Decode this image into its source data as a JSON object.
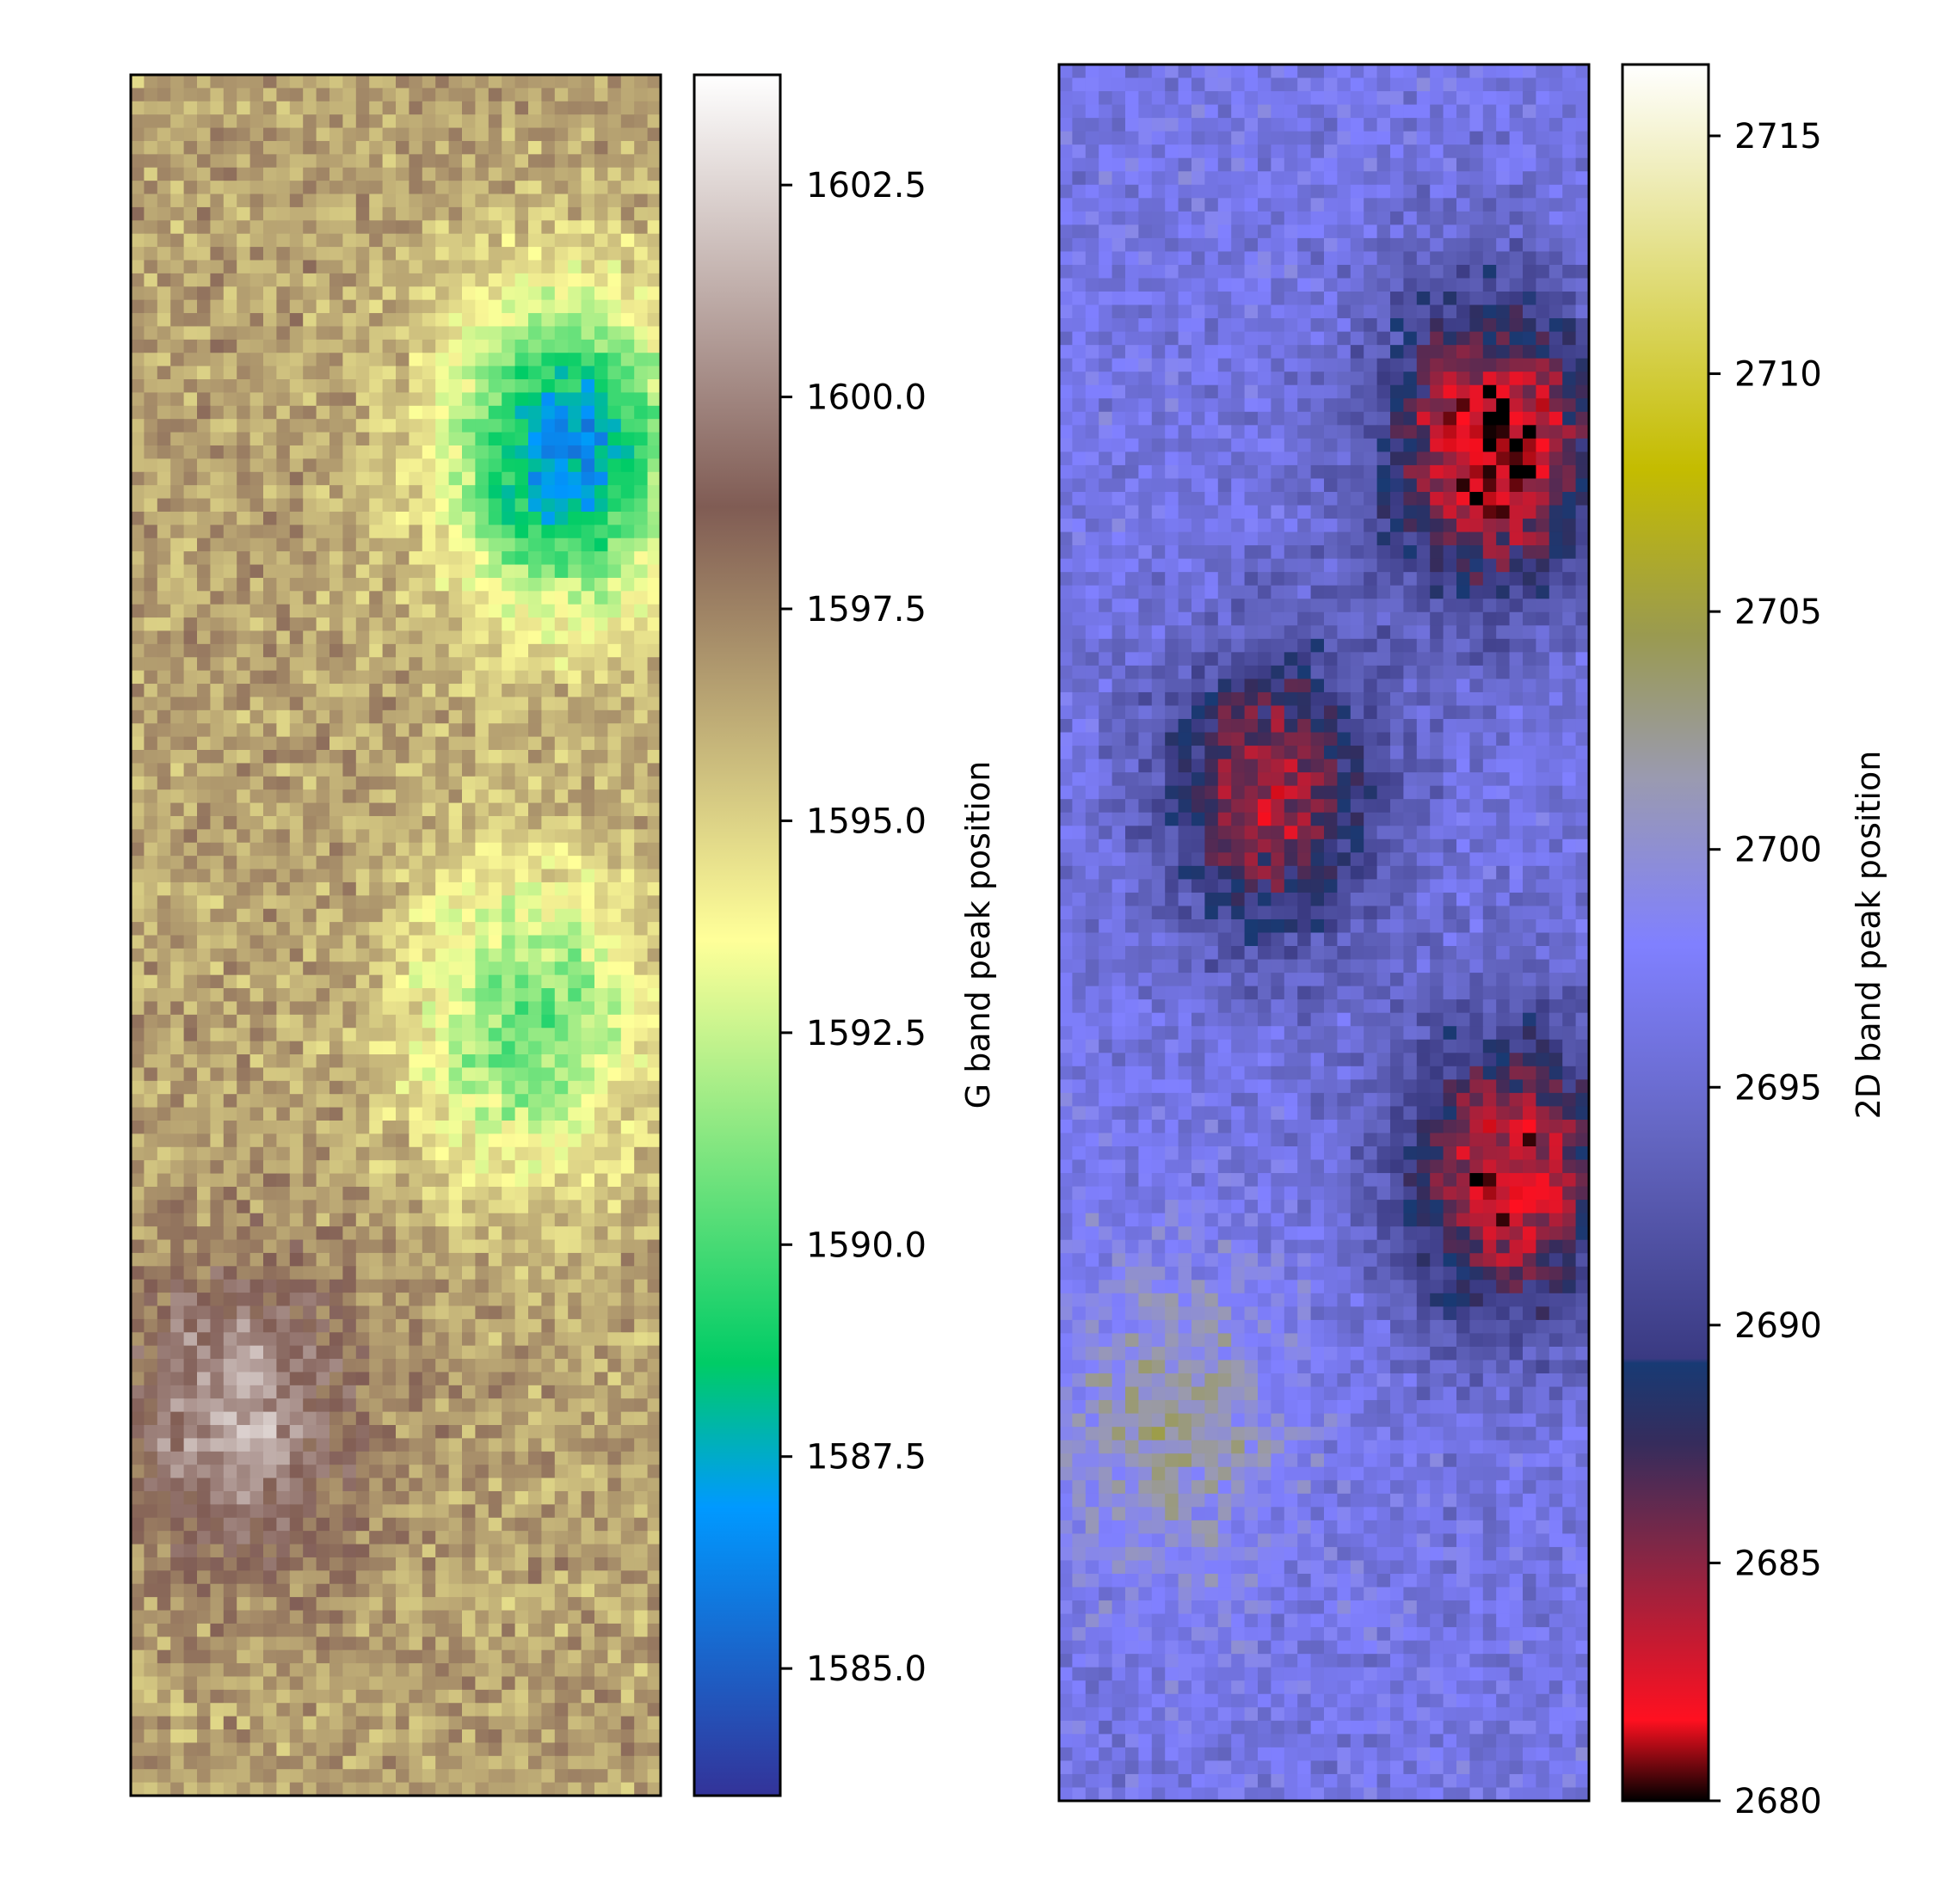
{
  "chart_data": [
    {
      "type": "heatmap",
      "title": "",
      "xlabel": "",
      "ylabel": "",
      "colorbar_label": "G band peak position",
      "colormap": "terrain",
      "colorbar_range": [
        1583.5,
        1603.8
      ],
      "colorbar_ticks": [
        1585.0,
        1587.5,
        1590.0,
        1592.5,
        1595.0,
        1597.5,
        1600.0,
        1602.5
      ],
      "colorbar_tick_labels": [
        "1585.0",
        "1587.5",
        "1590.0",
        "1592.5",
        "1595.0",
        "1597.5",
        "1600.0",
        "1602.5"
      ],
      "colorbar_stops": [
        {
          "value": 1583.5,
          "color": "#333399"
        },
        {
          "value": 1586.9,
          "color": "#0099ff"
        },
        {
          "value": 1588.6,
          "color": "#00cc66"
        },
        {
          "value": 1593.6,
          "color": "#ffff99"
        },
        {
          "value": 1598.7,
          "color": "#805c54"
        },
        {
          "value": 1603.8,
          "color": "#ffffff"
        }
      ],
      "features": [
        {
          "region": "upper-right",
          "level": 1586.5
        },
        {
          "region": "center-right",
          "level": 1590.5
        },
        {
          "region": "lower-left",
          "level": 1601.0
        },
        {
          "region": "background",
          "level": 1596.5
        }
      ]
    },
    {
      "type": "heatmap",
      "title": "",
      "xlabel": "",
      "ylabel": "",
      "colorbar_label": "2D band peak position",
      "colormap": "gist_stern-like",
      "colorbar_range": [
        2680,
        2716.5
      ],
      "colorbar_ticks": [
        2680,
        2685,
        2690,
        2695,
        2700,
        2705,
        2710,
        2715
      ],
      "colorbar_tick_labels": [
        "2680",
        "2685",
        "2690",
        "2695",
        "2700",
        "2705",
        "2710",
        "2715"
      ],
      "colorbar_stops": [
        {
          "value": 2680.0,
          "color": "#000000"
        },
        {
          "value": 2681.7,
          "color": "#ff1020"
        },
        {
          "value": 2685.5,
          "color": "#7a2848"
        },
        {
          "value": 2687.5,
          "color": "#362c5c"
        },
        {
          "value": 2689.2,
          "color": "#183a74"
        },
        {
          "value": 2689.3,
          "color": "#3a3a82"
        },
        {
          "value": 2694.0,
          "color": "#6466c2"
        },
        {
          "value": 2698.0,
          "color": "#8080ff"
        },
        {
          "value": 2701.5,
          "color": "#9a9ab0"
        },
        {
          "value": 2704.5,
          "color": "#9a9a50"
        },
        {
          "value": 2708.0,
          "color": "#c4bc00"
        },
        {
          "value": 2716.5,
          "color": "#ffffff"
        }
      ],
      "features": [
        {
          "region": "upper-right",
          "level": 2680.5
        },
        {
          "region": "middle-band",
          "level": 2684.0
        },
        {
          "region": "lower-right",
          "level": 2682.0
        },
        {
          "region": "lower-left",
          "level": 2702.0
        },
        {
          "region": "background",
          "level": 2696.5
        }
      ]
    }
  ]
}
